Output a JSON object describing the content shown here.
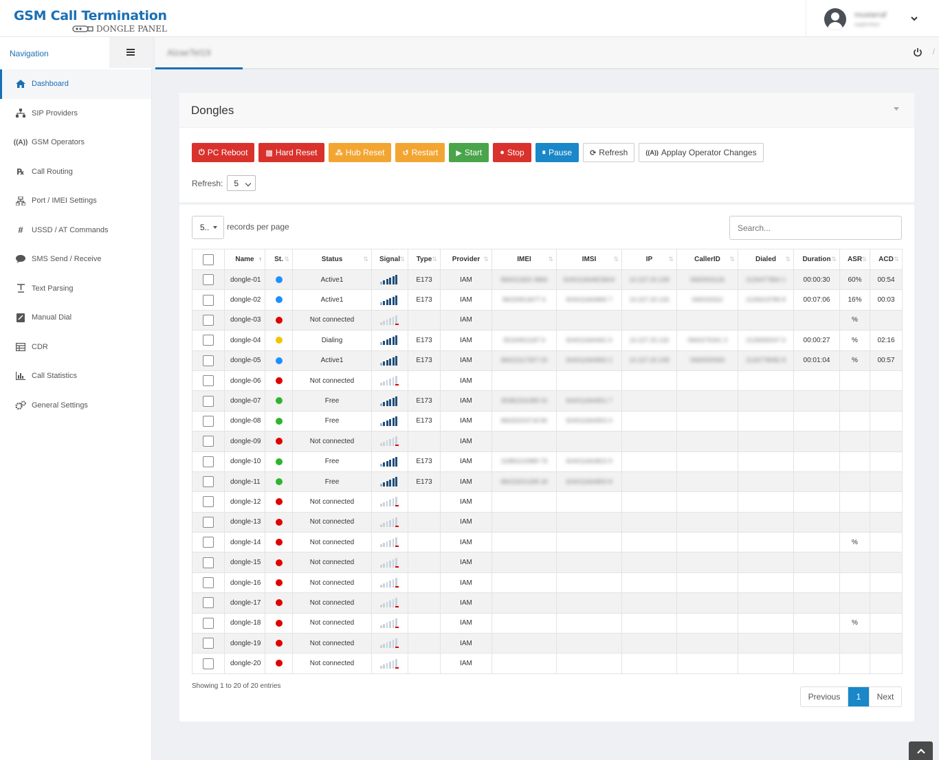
{
  "header": {
    "app_title": "GSM Call Termination",
    "app_subtitle": "DONGLE PANEL",
    "user_name": "mustarraf",
    "user_role": "supervisor"
  },
  "sidebar": {
    "nav_label": "Navigation",
    "items": [
      {
        "label": "Dashboard",
        "icon": "home-icon"
      },
      {
        "label": "SIP Providers",
        "icon": "sitemap-icon"
      },
      {
        "label": "GSM Operators",
        "icon": "antenna-icon"
      },
      {
        "label": "Call Routing",
        "icon": "rx-icon"
      },
      {
        "label": "Port / IMEI Settings",
        "icon": "network-icon"
      },
      {
        "label": "USSD / AT Commands",
        "icon": "hash-icon"
      },
      {
        "label": "SMS Send / Receive",
        "icon": "sms-icon"
      },
      {
        "label": "Text Parsing",
        "icon": "text-icon"
      },
      {
        "label": "Manual Dial",
        "icon": "dial-icon"
      },
      {
        "label": "CDR",
        "icon": "table-icon"
      },
      {
        "label": "Call Statistics",
        "icon": "bar-chart-icon"
      },
      {
        "label": "General Settings",
        "icon": "gears-icon"
      }
    ]
  },
  "content_tab": "AlzaeTel19",
  "panel": {
    "title": "Dongles",
    "buttons": {
      "pc_reboot": "PC Reboot",
      "hard_reset": "Hard Reset",
      "hub_reset": "Hub Reset",
      "restart": "Restart",
      "start": "Start",
      "stop": "Stop",
      "pause": "Pause",
      "refresh": "Refresh",
      "apply": "Applay Operator Changes"
    },
    "refresh_label": "Refresh:",
    "refresh_value": "5",
    "records_value": "5..",
    "records_label": "records per page",
    "search_placeholder": "Search...",
    "columns": [
      "",
      "Name",
      "St.",
      "Status",
      "Signal",
      "Type",
      "Provider",
      "IMEI",
      "IMSI",
      "IP",
      "CallerID",
      "Dialed",
      "Duration",
      "ASR",
      "ACD"
    ],
    "rows": [
      {
        "name": "dongle-01",
        "st": "#1e90ff",
        "status": "Active1",
        "signal": 4,
        "type": "E173",
        "provider": "IAM",
        "imei": "866021820 3866",
        "imsi": "604011664823604",
        "ip": "10.227.20.108",
        "callerid": "0660933126",
        "dialed": "2126477864 1",
        "duration": "00:00:30",
        "asr": "60%",
        "acd": "00:54"
      },
      {
        "name": "dongle-02",
        "st": "#1e90ff",
        "status": "Active1",
        "signal": 4,
        "type": "E173",
        "provider": "IAM",
        "imei": "86020813677 6",
        "imsi": "604011664865 7",
        "ip": "10.227.20.133",
        "callerid": "066033322",
        "dialed": "2126619789 8",
        "duration": "00:07:06",
        "asr": "16%",
        "acd": "00:03"
      },
      {
        "name": "dongle-03",
        "st": "#e00000",
        "status": "Not connected",
        "signal": 0,
        "type": "",
        "provider": "IAM",
        "imei": "",
        "imsi": "",
        "ip": "",
        "callerid": "",
        "dialed": "",
        "duration": "",
        "asr": "%",
        "acd": ""
      },
      {
        "name": "dongle-04",
        "st": "#f5c400",
        "status": "Dialing",
        "signal": 4,
        "type": "E173",
        "provider": "IAM",
        "imei": "35160811187 6",
        "imsi": "604011664461 5",
        "ip": "10.227.20.132",
        "callerid": "0660275341 3",
        "dialed": "2126655047 6",
        "duration": "00:00:27",
        "asr": "%",
        "acd": "02:16"
      },
      {
        "name": "dongle-05",
        "st": "#1e90ff",
        "status": "Active1",
        "signal": 4,
        "type": "E173",
        "provider": "IAM",
        "imei": "86622117307 03",
        "imsi": "604011664892 2",
        "ip": "10.227.20.108",
        "callerid": "0669300069",
        "dialed": "2126778082 8",
        "duration": "00:01:04",
        "asr": "%",
        "acd": "00:57"
      },
      {
        "name": "dongle-06",
        "st": "#e00000",
        "status": "Not connected",
        "signal": 0,
        "type": "",
        "provider": "IAM",
        "imei": "",
        "imsi": "",
        "ip": "",
        "callerid": "",
        "dialed": "",
        "duration": "",
        "asr": "",
        "acd": ""
      },
      {
        "name": "dongle-07",
        "st": "#2db52d",
        "status": "Free",
        "signal": 4,
        "type": "E173",
        "provider": "IAM",
        "imei": "35382331089 02",
        "imsi": "604011664901 7",
        "ip": "",
        "callerid": "",
        "dialed": "",
        "duration": "",
        "asr": "",
        "acd": ""
      },
      {
        "name": "dongle-08",
        "st": "#2db52d",
        "status": "Free",
        "signal": 4,
        "type": "E173",
        "provider": "IAM",
        "imei": "86630203718 80",
        "imsi": "604011664903 4",
        "ip": "",
        "callerid": "",
        "dialed": "",
        "duration": "",
        "asr": "",
        "acd": ""
      },
      {
        "name": "dongle-09",
        "st": "#e00000",
        "status": "Not connected",
        "signal": 0,
        "type": "",
        "provider": "IAM",
        "imei": "",
        "imsi": "",
        "ip": "",
        "callerid": "",
        "dialed": "",
        "duration": "",
        "asr": "",
        "acd": ""
      },
      {
        "name": "dongle-10",
        "st": "#2db52d",
        "status": "Free",
        "signal": 4,
        "type": "E173",
        "provider": "IAM",
        "imei": "31883102889 79",
        "imsi": "604011664823 9",
        "ip": "",
        "callerid": "",
        "dialed": "",
        "duration": "",
        "asr": "",
        "acd": ""
      },
      {
        "name": "dongle-11",
        "st": "#2db52d",
        "status": "Free",
        "signal": 4,
        "type": "E173",
        "provider": "IAM",
        "imei": "86023201308 18",
        "imsi": "604011664800 8",
        "ip": "",
        "callerid": "",
        "dialed": "",
        "duration": "",
        "asr": "",
        "acd": ""
      },
      {
        "name": "dongle-12",
        "st": "#e00000",
        "status": "Not connected",
        "signal": 0,
        "type": "",
        "provider": "IAM",
        "imei": "",
        "imsi": "",
        "ip": "",
        "callerid": "",
        "dialed": "",
        "duration": "",
        "asr": "",
        "acd": ""
      },
      {
        "name": "dongle-13",
        "st": "#e00000",
        "status": "Not connected",
        "signal": 0,
        "type": "",
        "provider": "IAM",
        "imei": "",
        "imsi": "",
        "ip": "",
        "callerid": "",
        "dialed": "",
        "duration": "",
        "asr": "",
        "acd": ""
      },
      {
        "name": "dongle-14",
        "st": "#e00000",
        "status": "Not connected",
        "signal": 0,
        "type": "",
        "provider": "IAM",
        "imei": "",
        "imsi": "",
        "ip": "",
        "callerid": "",
        "dialed": "",
        "duration": "",
        "asr": "%",
        "acd": ""
      },
      {
        "name": "dongle-15",
        "st": "#e00000",
        "status": "Not connected",
        "signal": 0,
        "type": "",
        "provider": "IAM",
        "imei": "",
        "imsi": "",
        "ip": "",
        "callerid": "",
        "dialed": "",
        "duration": "",
        "asr": "",
        "acd": ""
      },
      {
        "name": "dongle-16",
        "st": "#e00000",
        "status": "Not connected",
        "signal": 0,
        "type": "",
        "provider": "IAM",
        "imei": "",
        "imsi": "",
        "ip": "",
        "callerid": "",
        "dialed": "",
        "duration": "",
        "asr": "",
        "acd": ""
      },
      {
        "name": "dongle-17",
        "st": "#e00000",
        "status": "Not connected",
        "signal": 0,
        "type": "",
        "provider": "IAM",
        "imei": "",
        "imsi": "",
        "ip": "",
        "callerid": "",
        "dialed": "",
        "duration": "",
        "asr": "",
        "acd": ""
      },
      {
        "name": "dongle-18",
        "st": "#e00000",
        "status": "Not connected",
        "signal": 0,
        "type": "",
        "provider": "IAM",
        "imei": "",
        "imsi": "",
        "ip": "",
        "callerid": "",
        "dialed": "",
        "duration": "",
        "asr": "%",
        "acd": ""
      },
      {
        "name": "dongle-19",
        "st": "#e00000",
        "status": "Not connected",
        "signal": 0,
        "type": "",
        "provider": "IAM",
        "imei": "",
        "imsi": "",
        "ip": "",
        "callerid": "",
        "dialed": "",
        "duration": "",
        "asr": "",
        "acd": ""
      },
      {
        "name": "dongle-20",
        "st": "#e00000",
        "status": "Not connected",
        "signal": 0,
        "type": "",
        "provider": "IAM",
        "imei": "",
        "imsi": "",
        "ip": "",
        "callerid": "",
        "dialed": "",
        "duration": "",
        "asr": "",
        "acd": ""
      }
    ],
    "info_text": "Showing 1 to 20 of 20 entries",
    "pager": {
      "prev": "Previous",
      "current": "1",
      "next": "Next"
    }
  },
  "colors": {
    "accent": "#1a6fb5",
    "danger": "#d9322c",
    "warning": "#f3a532",
    "success": "#4aa44a",
    "info": "#1a87c8"
  }
}
